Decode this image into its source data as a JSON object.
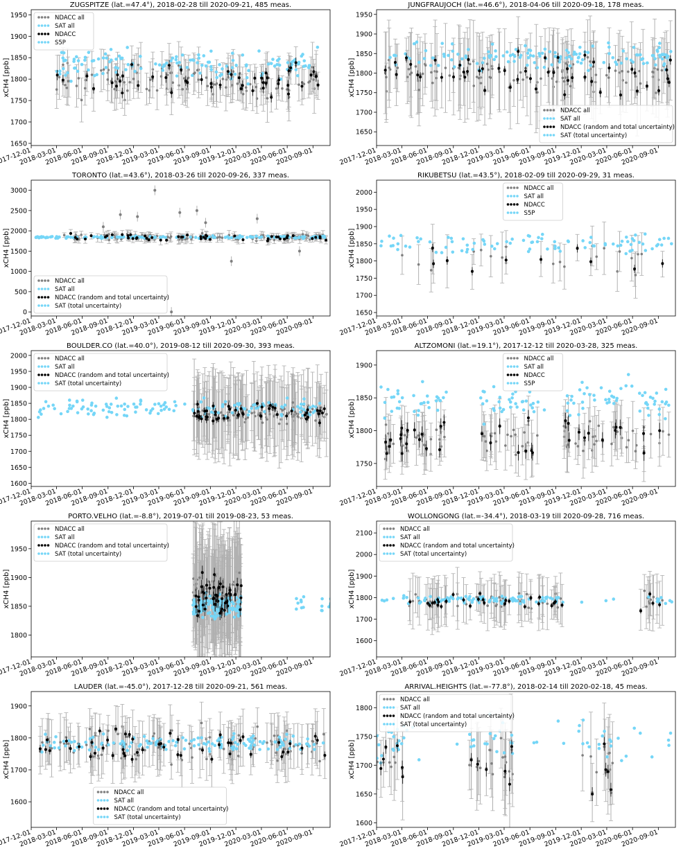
{
  "x_tick_labels": [
    "2017-12-01",
    "2018-03-01",
    "2018-06-01",
    "2018-09-01",
    "2018-12-01",
    "2019-03-01",
    "2019-06-01",
    "2019-09-01",
    "2019-12-01",
    "2020-03-01",
    "2020-06-01",
    "2020-09-01"
  ],
  "colors": {
    "ndacc_all": "#7f7f7f",
    "ndacc_err": "#b0b0b0",
    "sat": "#75d6f7",
    "ndacc": "#000000"
  },
  "chart_data": [
    {
      "type": "scatter",
      "title": "ZUGSPITZE (lat.=47.4°), 2018-02-28 till 2020-09-21, 485 meas.",
      "ylabel": "xCH4 [ppb]",
      "yticks": [
        1650,
        1700,
        1750,
        1800,
        1850,
        1900,
        1950
      ],
      "ylim": [
        1645,
        1962
      ],
      "legend": [
        "NDACC all",
        "SAT all",
        "NDACC",
        "S5P"
      ],
      "legend_pos": "top-left",
      "dates": [
        "2018-02-28",
        "2020-09-21"
      ],
      "ndacc_mean": 1795,
      "ndacc_spread": 30,
      "ndacc_err": 45,
      "sat_mean": 1835,
      "sat_spread": 25,
      "ndacc_only": true,
      "gaps": []
    },
    {
      "type": "scatter",
      "title": "JUNGFRAUJOCH (lat.=46.6°), 2018-04-06 till 2020-09-18, 178 meas.",
      "ylabel": "xCH4 [ppb]",
      "yticks": [
        1650,
        1700,
        1750,
        1800,
        1850,
        1900,
        1950
      ],
      "ylim": [
        1615,
        1962
      ],
      "legend": [
        "NDACC all",
        "SAT all",
        "NDACC (random and total uncertainty)",
        "SAT (total uncertainty)"
      ],
      "legend_pos": "bottom-right",
      "dates": [
        "2018-01-01",
        "2020-10-20"
      ],
      "ndacc_mean": 1800,
      "ndacc_spread": 35,
      "ndacc_err": 90,
      "sat_mean": 1840,
      "sat_spread": 25,
      "gaps": []
    },
    {
      "type": "scatter",
      "title": "TORONTO (lat.=43.6°), 2018-03-26 till 2020-09-26, 337 meas.",
      "ylabel": "xCH4 [ppb]",
      "yticks": [
        0,
        500,
        1000,
        1500,
        2000,
        2500,
        3000
      ],
      "ylim": [
        -100,
        3250
      ],
      "legend": [
        "NDACC all",
        "SAT all",
        "NDACC (random and total uncertainty)",
        "SAT (total uncertainty)"
      ],
      "legend_pos": "bottom-left",
      "dates": [
        "2018-03-26",
        "2020-10-20"
      ],
      "ndacc_mean": 1840,
      "ndacc_spread": 60,
      "ndacc_err": 90,
      "sat_mean": 1845,
      "sat_spread": 20,
      "sat_start": "2017-12-15",
      "outliers": [
        [
          2019,
          2.7,
          3000
        ],
        [
          2018,
          10,
          2400
        ],
        [
          2018,
          8,
          2100
        ],
        [
          2019,
          5,
          2450
        ],
        [
          2019,
          7,
          2500
        ],
        [
          2019,
          8,
          2200
        ],
        [
          2019,
          11,
          1250
        ],
        [
          2020,
          2,
          2300
        ],
        [
          2020,
          7,
          1500
        ],
        [
          2019,
          4,
          0
        ],
        [
          2018,
          12,
          2350
        ]
      ],
      "gaps": []
    },
    {
      "type": "scatter",
      "title": "RIKUBETSU (lat.=43.5°), 2018-02-09 till 2020-09-29, 31 meas.",
      "ylabel": "xCH4 [ppb]",
      "yticks": [
        1650,
        1700,
        1750,
        1800,
        1850,
        1900,
        1950,
        2000
      ],
      "ylim": [
        1640,
        2035
      ],
      "legend": [
        "NDACC all",
        "SAT all",
        "NDACC",
        "S5P"
      ],
      "legend_pos": "top-center",
      "dates": [
        "2017-12-10",
        "2020-10-20"
      ],
      "ndacc_mean": 1810,
      "ndacc_spread": 40,
      "ndacc_err": 60,
      "sat_mean": 1850,
      "sat_spread": 22,
      "sparse": true,
      "gaps": []
    },
    {
      "type": "scatter",
      "title": "BOULDER.CO (lat.=40.0°), 2019-08-12 till 2020-09-30, 393 meas.",
      "ylabel": "xCH4 [ppb]",
      "yticks": [
        1600,
        1650,
        1700,
        1750,
        1800,
        1850,
        1900,
        1950,
        2000
      ],
      "ylim": [
        1590,
        2015
      ],
      "legend": [
        "NDACC all",
        "SAT all",
        "NDACC (random and total uncertainty)",
        "SAT (total uncertainty)"
      ],
      "legend_pos": "top-left",
      "dates": [
        "2019-07-01",
        "2020-10-20"
      ],
      "ndacc_mean": 1820,
      "ndacc_spread": 25,
      "ndacc_err": 110,
      "sat_mean": 1835,
      "sat_spread": 20,
      "sat_start": "2017-12-15",
      "gaps": []
    },
    {
      "type": "scatter",
      "title": "ALTZOMONI (lat.=19.1°), 2017-12-12 till 2020-03-28, 325 meas.",
      "ylabel": "xCH4 [ppb]",
      "yticks": [
        1750,
        1800,
        1850,
        1900
      ],
      "ylim": [
        1715,
        1922
      ],
      "legend": [
        "NDACC all",
        "SAT all",
        "NDACC",
        "S5P"
      ],
      "legend_pos": "top-center",
      "dates": [
        "2017-12-12",
        "2020-10-20"
      ],
      "ndacc_mean": 1790,
      "ndacc_spread": 20,
      "ndacc_err": 35,
      "sat_mean": 1845,
      "sat_spread": 22,
      "gaps": [
        [
          2018,
          8,
          2018,
          11
        ],
        [
          2019,
          7,
          2019,
          9
        ]
      ]
    },
    {
      "type": "scatter",
      "title": "PORTO.VELHO (lat.=-8.8°), 2019-07-01 till 2019-08-23, 53 meas.",
      "ylabel": "xCH4 [ppb]",
      "yticks": [
        1800,
        1850,
        1900,
        1950
      ],
      "ylim": [
        1762,
        1998
      ],
      "legend": [
        "NDACC all",
        "SAT all",
        "NDACC (random and total uncertainty)",
        "SAT (total uncertainty)"
      ],
      "legend_pos": "top-left",
      "dates": [
        "2019-07-01",
        "2019-12-20"
      ],
      "ndacc_mean": 1870,
      "ndacc_spread": 25,
      "ndacc_err": 90,
      "sat_mean": 1850,
      "sat_spread": 15,
      "sat_extra": [
        [
          2020,
          7
        ],
        [
          2020,
          10
        ]
      ],
      "gaps": []
    },
    {
      "type": "scatter",
      "title": "WOLLONGONG (lat.=-34.4°), 2018-03-19 till 2020-09-28, 716 meas.",
      "ylabel": "xCH4 [ppb]",
      "yticks": [
        1600,
        1700,
        1800,
        1900,
        2000,
        2100
      ],
      "ylim": [
        1525,
        2155
      ],
      "legend": [
        "NDACC all",
        "SAT all",
        "NDACC (random and total uncertainty)",
        "SAT (total uncertainty)"
      ],
      "legend_pos": "top-left",
      "dates": [
        "2018-03-19",
        "2020-10-20"
      ],
      "ndacc_mean": 1785,
      "ndacc_spread": 30,
      "ndacc_err": 100,
      "sat_mean": 1790,
      "sat_spread": 15,
      "sat_start": "2017-12-20",
      "gaps": [
        [
          2019,
          10,
          2020,
          6
        ]
      ]
    },
    {
      "type": "scatter",
      "title": "LAUDER (lat.=-45.0°), 2017-12-28 till 2020-09-21, 561 meas.",
      "ylabel": "xCH4 [ppb]",
      "yticks": [
        1600,
        1700,
        1800,
        1900
      ],
      "ylim": [
        1520,
        1945
      ],
      "legend": [
        "NDACC all",
        "SAT all",
        "NDACC (random and total uncertainty)",
        "SAT (total uncertainty)"
      ],
      "legend_pos": "bottom-center",
      "dates": [
        "2017-12-28",
        "2020-10-20"
      ],
      "ndacc_mean": 1775,
      "ndacc_spread": 40,
      "ndacc_err": 70,
      "sat_mean": 1785,
      "sat_spread": 20,
      "gaps": []
    },
    {
      "type": "scatter",
      "title": "ARRIVAL.HEIGHTS (lat.=-77.8°), 2018-02-14 till 2020-02-18, 45 meas.",
      "ylabel": "xCH4 [ppb]",
      "yticks": [
        1600,
        1650,
        1700,
        1750,
        1800
      ],
      "ylim": [
        1592,
        1828
      ],
      "legend": [
        "NDACC all",
        "SAT all",
        "NDACC (random and total uncertainty)",
        "SAT (total uncertainty)"
      ],
      "legend_pos": "top-left",
      "dates": [
        "2017-12-01",
        "2020-10-20"
      ],
      "ndacc_mean": 1705,
      "ndacc_spread": 35,
      "ndacc_err": 60,
      "sat_mean": 1745,
      "sat_spread": 25,
      "gaps": [
        [
          2018,
          4,
          2018,
          10
        ],
        [
          2019,
          4,
          2019,
          11
        ],
        [
          2020,
          4,
          2020,
          12
        ]
      ]
    }
  ]
}
